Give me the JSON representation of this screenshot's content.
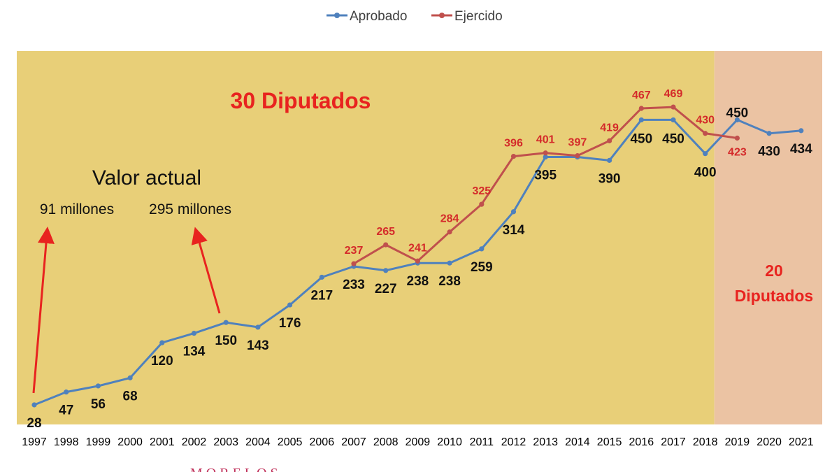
{
  "chart_data": {
    "type": "line",
    "categories": [
      "1997",
      "1998",
      "1999",
      "2000",
      "2001",
      "2002",
      "2003",
      "2004",
      "2005",
      "2006",
      "2007",
      "2008",
      "2009",
      "2010",
      "2011",
      "2012",
      "2013",
      "2014",
      "2015",
      "2016",
      "2017",
      "2018",
      "2019",
      "2020",
      "2021"
    ],
    "series": [
      {
        "name": "Aprobado",
        "color": "#4f81bd",
        "values": [
          28,
          47,
          56,
          68,
          120,
          134,
          150,
          143,
          176,
          217,
          233,
          227,
          238,
          238,
          259,
          314,
          395,
          395,
          390,
          450,
          450,
          400,
          450,
          430,
          434
        ],
        "labels": [
          "28",
          "47",
          "56",
          "68",
          "120",
          "134",
          "150",
          "143",
          "176",
          "217",
          "233",
          "227",
          "238",
          "238",
          "259",
          "314",
          "395",
          "",
          "390",
          "450",
          "450",
          "400",
          "450",
          "430",
          "434"
        ]
      },
      {
        "name": "Ejercido",
        "color": "#c0504d",
        "values": [
          null,
          null,
          null,
          null,
          null,
          null,
          null,
          null,
          null,
          null,
          237,
          265,
          241,
          284,
          325,
          396,
          401,
          397,
          419,
          467,
          469,
          430,
          423,
          null,
          null
        ],
        "labels": [
          "",
          "",
          "",
          "",
          "",
          "",
          "",
          "",
          "",
          "",
          "237",
          "265",
          "241",
          "284",
          "325",
          "396",
          "401",
          "397",
          "419",
          "467",
          "469",
          "430",
          "423",
          "",
          ""
        ]
      }
    ],
    "regions": [
      {
        "label": "30 Diputados",
        "from": "1997",
        "to": "2018",
        "color": "#e8cf78"
      },
      {
        "label_line1": "20",
        "label_line2": "Diputados",
        "from": "2019",
        "to": "2021",
        "color": "#ebc3a3"
      }
    ],
    "annotations": {
      "heading": "Valor actual",
      "note_1997": "91 millones",
      "note_2003": "295 millones",
      "arrow_color": "#e8231f"
    },
    "legend_placement": "top-center",
    "grid": false,
    "footer_text": "MORELOS"
  }
}
